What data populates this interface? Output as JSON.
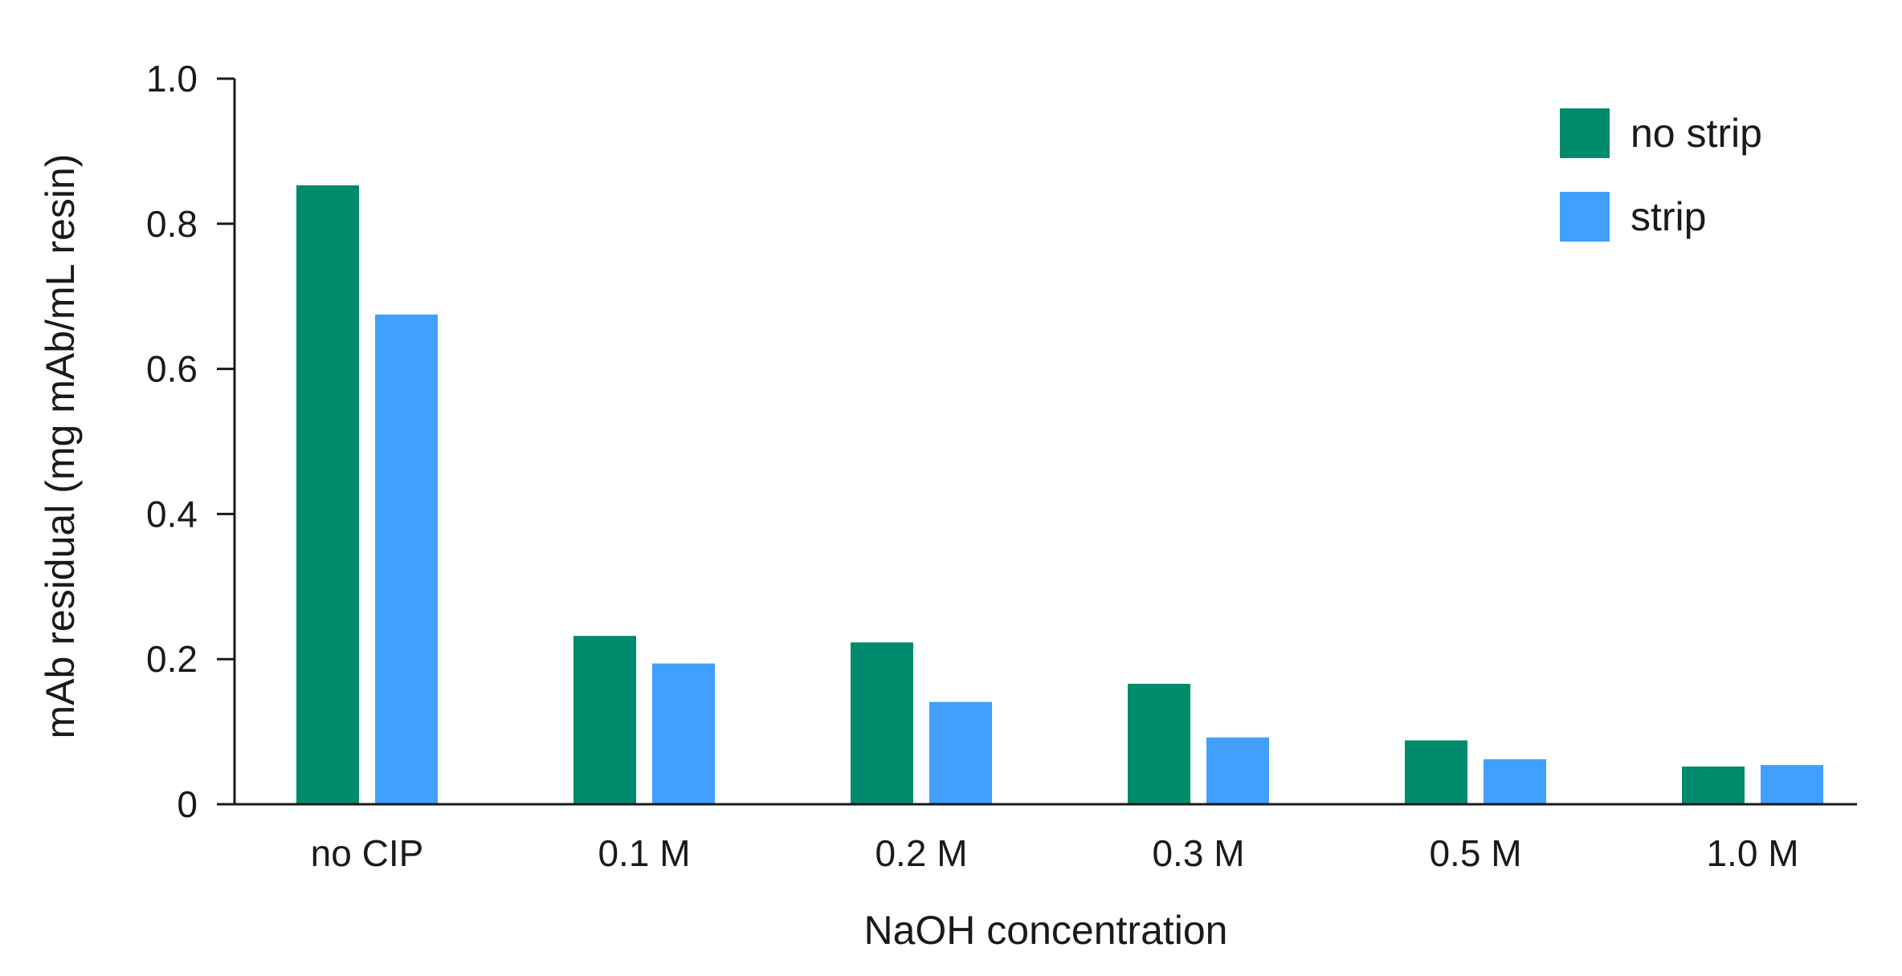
{
  "chart_data": {
    "type": "bar",
    "title": "",
    "xlabel": "NaOH concentration",
    "ylabel": "mAb residual (mg mAb/mL resin)",
    "ylim": [
      0,
      1.0
    ],
    "yticks": [
      "0",
      "0.2",
      "0.4",
      "0.6",
      "0.8",
      "1.0"
    ],
    "yticks_values": [
      0,
      0.2,
      0.4,
      0.6,
      0.8,
      1.0
    ],
    "categories": [
      "no CIP",
      "0.1 M",
      "0.2 M",
      "0.3 M",
      "0.5 M",
      "1.0 M"
    ],
    "series": [
      {
        "name": "no strip",
        "color": "#008A6E",
        "values": [
          0.853,
          0.232,
          0.223,
          0.166,
          0.088,
          0.052
        ]
      },
      {
        "name": "strip",
        "color": "#409FFF",
        "values": [
          0.675,
          0.194,
          0.141,
          0.092,
          0.062,
          0.054
        ]
      }
    ],
    "grid": false,
    "legend_position": "top-right"
  }
}
